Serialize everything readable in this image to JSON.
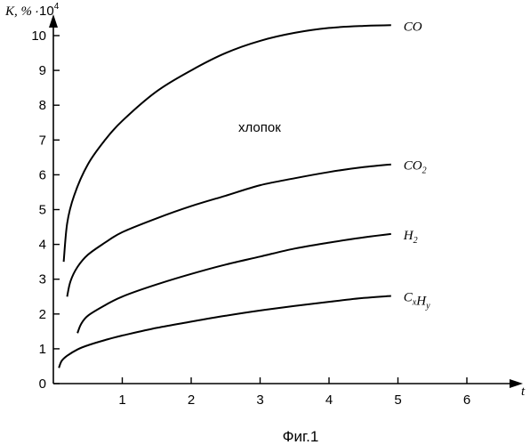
{
  "chart_data": {
    "type": "line",
    "title": "",
    "annotation": "хлопок",
    "caption": "Фиг.1",
    "xlabel": "t",
    "ylabel": {
      "main": "K, %",
      "dot": "·",
      "base": "10",
      "exponent": "4"
    },
    "xlim": [
      0,
      7
    ],
    "ylim": [
      0,
      10.5
    ],
    "x_ticks": [
      "1",
      "2",
      "3",
      "4",
      "5",
      "6"
    ],
    "y_ticks": [
      "0",
      "1",
      "2",
      "3",
      "4",
      "5",
      "6",
      "7",
      "8",
      "9",
      "10"
    ],
    "grid": false,
    "series": [
      {
        "name": "CO",
        "label_parts": [
          {
            "t": "CO",
            "sub": ""
          }
        ],
        "x": [
          0.15,
          0.2,
          0.3,
          0.5,
          0.75,
          1.0,
          1.5,
          2.0,
          2.5,
          3.0,
          3.5,
          4.0,
          4.5,
          4.9
        ],
        "y": [
          3.5,
          4.6,
          5.4,
          6.3,
          7.0,
          7.55,
          8.4,
          9.0,
          9.5,
          9.85,
          10.08,
          10.22,
          10.28,
          10.3
        ]
      },
      {
        "name": "CO2",
        "label_parts": [
          {
            "t": "CO",
            "sub": "2"
          }
        ],
        "x": [
          0.2,
          0.25,
          0.35,
          0.5,
          0.75,
          1.0,
          1.5,
          2.0,
          2.5,
          3.0,
          3.5,
          4.0,
          4.5,
          4.9
        ],
        "y": [
          2.5,
          2.95,
          3.35,
          3.7,
          4.05,
          4.35,
          4.75,
          5.1,
          5.4,
          5.7,
          5.9,
          6.08,
          6.22,
          6.3
        ]
      },
      {
        "name": "H2",
        "label_parts": [
          {
            "t": "H",
            "sub": "2"
          }
        ],
        "x": [
          0.35,
          0.4,
          0.5,
          0.75,
          1.0,
          1.5,
          2.0,
          2.5,
          3.0,
          3.5,
          4.0,
          4.5,
          4.9
        ],
        "y": [
          1.45,
          1.7,
          1.95,
          2.25,
          2.5,
          2.85,
          3.15,
          3.42,
          3.65,
          3.88,
          4.05,
          4.2,
          4.3
        ]
      },
      {
        "name": "CxHy",
        "label_parts": [
          {
            "t": "C",
            "sub": "x"
          },
          {
            "t": "H",
            "sub": "y"
          }
        ],
        "x": [
          0.08,
          0.12,
          0.2,
          0.35,
          0.5,
          0.75,
          1.0,
          1.5,
          2.0,
          2.5,
          3.0,
          3.5,
          4.0,
          4.5,
          4.9
        ],
        "y": [
          0.45,
          0.65,
          0.8,
          0.98,
          1.1,
          1.25,
          1.38,
          1.6,
          1.78,
          1.95,
          2.1,
          2.23,
          2.35,
          2.46,
          2.52
        ]
      }
    ]
  }
}
